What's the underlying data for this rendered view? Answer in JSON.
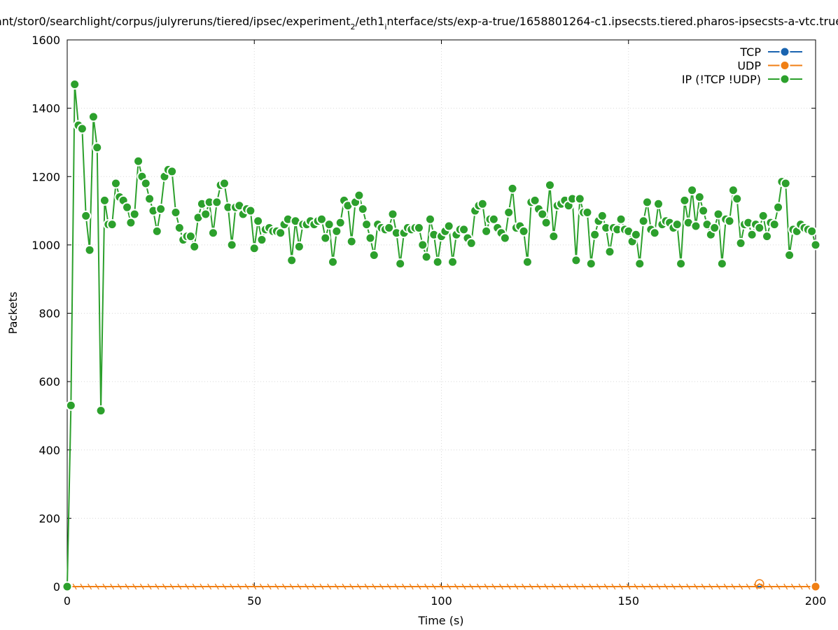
{
  "chart_data": {
    "type": "line",
    "title_prefix": "ant/stor0/searchlight/corpus/julyreruns/tiered/ipsec/experiment",
    "title_sub": "2",
    "title_mid": "/eth1",
    "title_sub2": "i",
    "title_suffix": "nterface/sts/exp-a-true/1658801264-c1.ipsecsts.tiered.pharos-ipsecsts-a-vtc.true",
    "xlabel": "Time (s)",
    "ylabel": "Packets",
    "xlim": [
      0,
      200
    ],
    "ylim": [
      0,
      1600
    ],
    "xticks": [
      0,
      50,
      100,
      150,
      200
    ],
    "yticks": [
      0,
      200,
      400,
      600,
      800,
      1000,
      1200,
      1400,
      1600
    ],
    "grid": true,
    "legend_position": "top-right",
    "series": [
      {
        "name": "TCP",
        "color": "#1a64b0",
        "points": [
          [
            0,
            0
          ],
          [
            200,
            0
          ]
        ]
      },
      {
        "name": "UDP",
        "color": "#f07f14",
        "zero_ticks_step": 2,
        "points": [
          [
            0,
            0
          ],
          [
            184,
            0
          ],
          [
            185,
            8
          ],
          [
            186,
            0
          ],
          [
            200,
            0
          ]
        ]
      },
      {
        "name": "IP (!TCP  !UDP)",
        "color": "#2ca02c",
        "points": [
          [
            0,
            0
          ],
          [
            1,
            530
          ],
          [
            2,
            1470
          ],
          [
            3,
            1350
          ],
          [
            4,
            1340
          ],
          [
            5,
            1085
          ],
          [
            6,
            985
          ],
          [
            7,
            1375
          ],
          [
            8,
            1285
          ],
          [
            9,
            515
          ],
          [
            10,
            1130
          ],
          [
            11,
            1060
          ],
          [
            12,
            1060
          ],
          [
            13,
            1180
          ],
          [
            14,
            1140
          ],
          [
            15,
            1130
          ],
          [
            16,
            1110
          ],
          [
            17,
            1065
          ],
          [
            18,
            1090
          ],
          [
            19,
            1245
          ],
          [
            20,
            1200
          ],
          [
            21,
            1180
          ],
          [
            22,
            1135
          ],
          [
            23,
            1100
          ],
          [
            24,
            1040
          ],
          [
            25,
            1105
          ],
          [
            26,
            1200
          ],
          [
            27,
            1220
          ],
          [
            28,
            1215
          ],
          [
            29,
            1095
          ],
          [
            30,
            1050
          ],
          [
            31,
            1015
          ],
          [
            32,
            1025
          ],
          [
            33,
            1025
          ],
          [
            34,
            995
          ],
          [
            35,
            1080
          ],
          [
            36,
            1120
          ],
          [
            37,
            1090
          ],
          [
            38,
            1125
          ],
          [
            39,
            1035
          ],
          [
            40,
            1125
          ],
          [
            41,
            1175
          ],
          [
            42,
            1180
          ],
          [
            43,
            1110
          ],
          [
            44,
            1000
          ],
          [
            45,
            1110
          ],
          [
            46,
            1115
          ],
          [
            47,
            1090
          ],
          [
            48,
            1105
          ],
          [
            49,
            1100
          ],
          [
            50,
            990
          ],
          [
            51,
            1070
          ],
          [
            52,
            1015
          ],
          [
            53,
            1045
          ],
          [
            54,
            1050
          ],
          [
            55,
            1040
          ],
          [
            56,
            1040
          ],
          [
            57,
            1035
          ],
          [
            58,
            1060
          ],
          [
            59,
            1075
          ],
          [
            60,
            955
          ],
          [
            61,
            1070
          ],
          [
            62,
            995
          ],
          [
            63,
            1060
          ],
          [
            64,
            1060
          ],
          [
            65,
            1070
          ],
          [
            66,
            1060
          ],
          [
            67,
            1070
          ],
          [
            68,
            1075
          ],
          [
            69,
            1020
          ],
          [
            70,
            1060
          ],
          [
            71,
            950
          ],
          [
            72,
            1040
          ],
          [
            73,
            1065
          ],
          [
            74,
            1130
          ],
          [
            75,
            1115
          ],
          [
            76,
            1010
          ],
          [
            77,
            1125
          ],
          [
            78,
            1145
          ],
          [
            79,
            1105
          ],
          [
            80,
            1060
          ],
          [
            81,
            1020
          ],
          [
            82,
            970
          ],
          [
            83,
            1060
          ],
          [
            84,
            1050
          ],
          [
            85,
            1045
          ],
          [
            86,
            1050
          ],
          [
            87,
            1090
          ],
          [
            88,
            1035
          ],
          [
            89,
            945
          ],
          [
            90,
            1035
          ],
          [
            91,
            1050
          ],
          [
            92,
            1045
          ],
          [
            93,
            1050
          ],
          [
            94,
            1050
          ],
          [
            95,
            1000
          ],
          [
            96,
            965
          ],
          [
            97,
            1075
          ],
          [
            98,
            1030
          ],
          [
            99,
            950
          ],
          [
            100,
            1025
          ],
          [
            101,
            1040
          ],
          [
            102,
            1055
          ],
          [
            103,
            950
          ],
          [
            104,
            1030
          ],
          [
            105,
            1045
          ],
          [
            106,
            1045
          ],
          [
            107,
            1020
          ],
          [
            108,
            1005
          ],
          [
            109,
            1100
          ],
          [
            110,
            1115
          ],
          [
            111,
            1120
          ],
          [
            112,
            1040
          ],
          [
            113,
            1075
          ],
          [
            114,
            1075
          ],
          [
            115,
            1050
          ],
          [
            116,
            1035
          ],
          [
            117,
            1020
          ],
          [
            118,
            1095
          ],
          [
            119,
            1165
          ],
          [
            120,
            1050
          ],
          [
            121,
            1055
          ],
          [
            122,
            1040
          ],
          [
            123,
            950
          ],
          [
            124,
            1125
          ],
          [
            125,
            1130
          ],
          [
            126,
            1105
          ],
          [
            127,
            1090
          ],
          [
            128,
            1065
          ],
          [
            129,
            1175
          ],
          [
            130,
            1025
          ],
          [
            131,
            1115
          ],
          [
            132,
            1120
          ],
          [
            133,
            1130
          ],
          [
            134,
            1115
          ],
          [
            135,
            1135
          ],
          [
            136,
            955
          ],
          [
            137,
            1135
          ],
          [
            138,
            1095
          ],
          [
            139,
            1095
          ],
          [
            140,
            945
          ],
          [
            141,
            1030
          ],
          [
            142,
            1070
          ],
          [
            143,
            1085
          ],
          [
            144,
            1050
          ],
          [
            145,
            980
          ],
          [
            146,
            1050
          ],
          [
            147,
            1045
          ],
          [
            148,
            1075
          ],
          [
            149,
            1045
          ],
          [
            150,
            1040
          ],
          [
            151,
            1010
          ],
          [
            152,
            1030
          ],
          [
            153,
            945
          ],
          [
            154,
            1070
          ],
          [
            155,
            1125
          ],
          [
            156,
            1045
          ],
          [
            157,
            1035
          ],
          [
            158,
            1120
          ],
          [
            159,
            1060
          ],
          [
            160,
            1070
          ],
          [
            161,
            1065
          ],
          [
            162,
            1050
          ],
          [
            163,
            1060
          ],
          [
            164,
            945
          ],
          [
            165,
            1130
          ],
          [
            166,
            1065
          ],
          [
            167,
            1160
          ],
          [
            168,
            1055
          ],
          [
            169,
            1140
          ],
          [
            170,
            1100
          ],
          [
            171,
            1060
          ],
          [
            172,
            1030
          ],
          [
            173,
            1050
          ],
          [
            174,
            1090
          ],
          [
            175,
            945
          ],
          [
            176,
            1075
          ],
          [
            177,
            1070
          ],
          [
            178,
            1160
          ],
          [
            179,
            1135
          ],
          [
            180,
            1005
          ],
          [
            181,
            1060
          ],
          [
            182,
            1065
          ],
          [
            183,
            1030
          ],
          [
            184,
            1060
          ],
          [
            185,
            1050
          ],
          [
            186,
            1085
          ],
          [
            187,
            1025
          ],
          [
            188,
            1065
          ],
          [
            189,
            1060
          ],
          [
            190,
            1110
          ],
          [
            191,
            1185
          ],
          [
            192,
            1180
          ],
          [
            193,
            970
          ],
          [
            194,
            1045
          ],
          [
            195,
            1040
          ],
          [
            196,
            1060
          ],
          [
            197,
            1050
          ],
          [
            198,
            1045
          ],
          [
            199,
            1040
          ],
          [
            200,
            1000
          ]
        ]
      }
    ]
  }
}
